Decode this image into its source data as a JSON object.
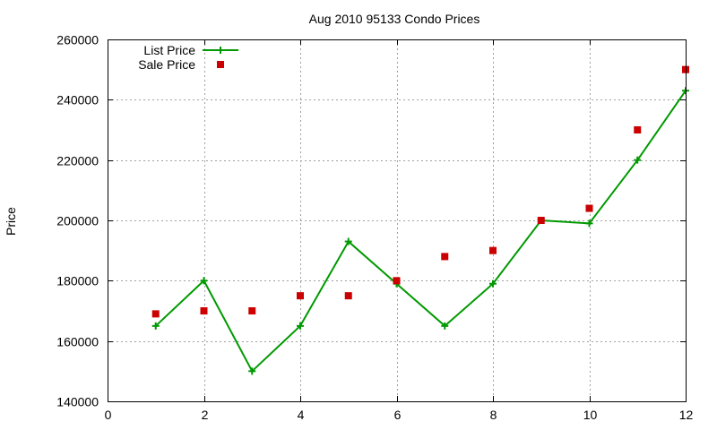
{
  "chart_data": {
    "type": "line",
    "title": "Aug 2010 95133 Condo Prices",
    "xlabel": "",
    "ylabel": "Price",
    "xlim": [
      0,
      12
    ],
    "ylim": [
      140000,
      260000
    ],
    "xticks": [
      0,
      2,
      4,
      6,
      8,
      10,
      12
    ],
    "yticks": [
      140000,
      160000,
      180000,
      200000,
      220000,
      240000,
      260000
    ],
    "grid": true,
    "legend_position": "top-left",
    "series": [
      {
        "name": "List Price",
        "style": "linespoints",
        "marker": "plus",
        "color": "#009900",
        "x": [
          1,
          2,
          3,
          4,
          5,
          6,
          7,
          8,
          9,
          10,
          11,
          12
        ],
        "y": [
          165000,
          180000,
          150000,
          165000,
          193000,
          179000,
          165000,
          179000,
          200000,
          199000,
          220000,
          243000
        ]
      },
      {
        "name": "Sale Price",
        "style": "points",
        "marker": "square",
        "color": "#cc0000",
        "x": [
          1,
          2,
          3,
          4,
          5,
          6,
          7,
          8,
          9,
          10,
          11,
          12
        ],
        "y": [
          169000,
          170000,
          170000,
          175000,
          175000,
          180000,
          188000,
          190000,
          200000,
          204000,
          230000,
          250000
        ]
      }
    ]
  }
}
